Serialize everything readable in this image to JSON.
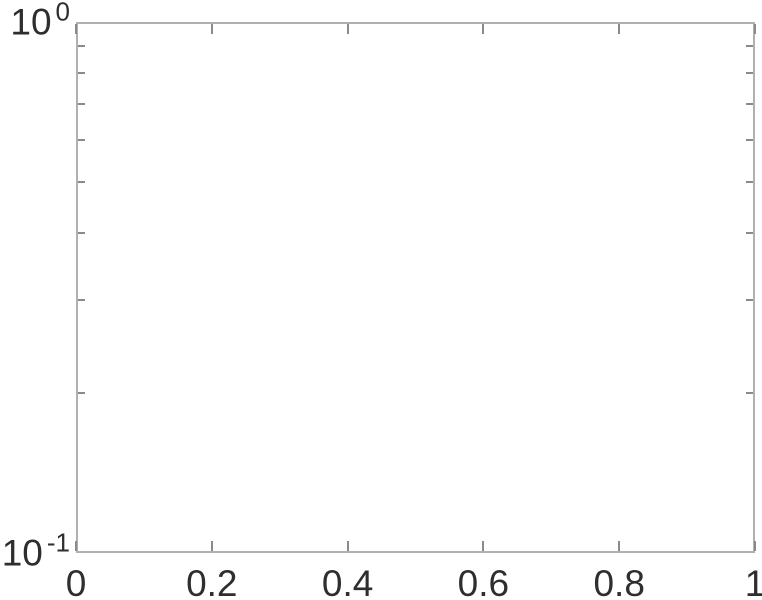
{
  "figure": {
    "background": "#ffffff",
    "colors": {
      "axis_box": "#b0b0b0",
      "tick_mark": "#8a8a8a",
      "tick_label": "#2e2e2e"
    }
  },
  "chart_data": {
    "type": "line",
    "title": "",
    "xlabel": "",
    "ylabel": "",
    "x_scale": "linear",
    "y_scale": "log",
    "xlim": [
      0,
      1
    ],
    "ylim": [
      0.1,
      1
    ],
    "grid": false,
    "box": true,
    "legend": null,
    "series": [],
    "x_ticks": [
      {
        "value": 0,
        "label": "0"
      },
      {
        "value": 0.2,
        "label": "0.2"
      },
      {
        "value": 0.4,
        "label": "0.4"
      },
      {
        "value": 0.6,
        "label": "0.6"
      },
      {
        "value": 0.8,
        "label": "0.8"
      },
      {
        "value": 1,
        "label": "1"
      }
    ],
    "y_ticks": [
      {
        "value": 1,
        "label": "10^0",
        "base": "10",
        "exponent": "0"
      },
      {
        "value": 0.1,
        "label": "10^-1",
        "base": "10",
        "exponent": "-1"
      }
    ],
    "y_minor_ticks": [
      0.2,
      0.3,
      0.4,
      0.5,
      0.6,
      0.7,
      0.8,
      0.9
    ]
  }
}
